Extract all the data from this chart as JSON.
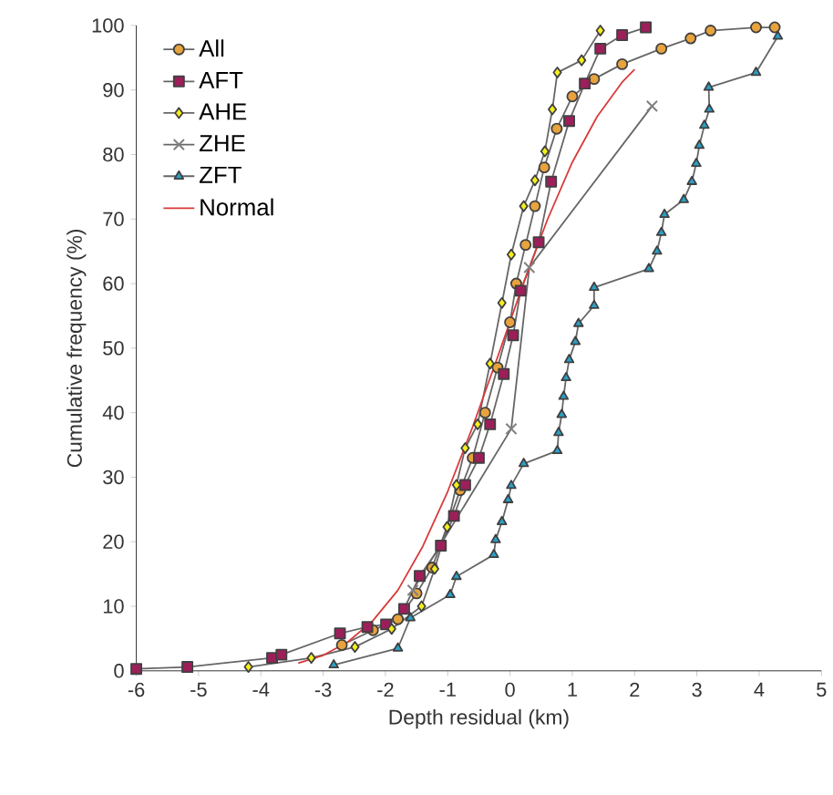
{
  "chart_data": {
    "type": "line",
    "xlabel": "Depth residual (km)",
    "ylabel": "Cumulative frequency (%)",
    "xlim": [
      -6,
      5
    ],
    "xticks": [
      -6,
      -5,
      -4,
      -3,
      -2,
      -1,
      0,
      1,
      2,
      3,
      4,
      5
    ],
    "ylim": [
      0,
      100
    ],
    "yticks": [
      0,
      10,
      20,
      30,
      40,
      50,
      60,
      70,
      80,
      90,
      100
    ],
    "grid": false,
    "legend": "top left",
    "series": [
      {
        "name": "All",
        "color": "#e8a33d",
        "marker": "circle",
        "x": [
          -2.7,
          -2.2,
          -1.8,
          -1.5,
          -1.25,
          -0.8,
          -0.6,
          -0.4,
          -0.2,
          0.0,
          0.1,
          0.25,
          0.4,
          0.55,
          0.75,
          1.0,
          1.35,
          1.8,
          2.43,
          2.9,
          3.22,
          3.95,
          4.25
        ],
        "values": [
          4,
          6.3,
          8,
          12,
          16,
          28,
          33,
          40,
          47,
          54,
          60,
          66,
          72,
          78,
          84,
          89,
          91.7,
          94,
          96.4,
          98,
          99.2,
          99.7,
          99.7
        ]
      },
      {
        "name": "AFT",
        "color": "#9c1f5a",
        "marker": "square",
        "x": [
          -6,
          -5.18,
          -3.82,
          -3.67,
          -2.73,
          -2.29,
          -1.99,
          -1.7,
          -1.45,
          -1.11,
          -0.9,
          -0.72,
          -0.5,
          -0.32,
          -0.1,
          0.05,
          0.17,
          0.46,
          0.66,
          0.95,
          1.2,
          1.45,
          1.8,
          2.18
        ],
        "values": [
          0.3,
          0.6,
          2,
          2.5,
          5.8,
          6.8,
          7.2,
          9.6,
          14.7,
          19.4,
          24,
          28.8,
          33,
          38.2,
          46,
          52,
          58.9,
          66.4,
          75.8,
          85.2,
          91,
          96.4,
          98.5,
          99.7
        ]
      },
      {
        "name": "AHE",
        "color": "#f5ee1c",
        "marker": "diamond",
        "x": [
          -4.2,
          -3.19,
          -2.49,
          -1.9,
          -1.42,
          -1.21,
          -1.01,
          -0.86,
          -0.72,
          -0.52,
          -0.32,
          -0.13,
          0.02,
          0.22,
          0.4,
          0.56,
          0.68,
          0.76,
          1.15,
          1.45
        ],
        "values": [
          0.6,
          2,
          3.7,
          6.5,
          10,
          15.8,
          22.3,
          28.8,
          34.5,
          38.2,
          47.6,
          57,
          64.5,
          72,
          76,
          80.5,
          87,
          92.7,
          94.6,
          99.2
        ]
      },
      {
        "name": "ZHE",
        "color": "#808080",
        "marker": "cross",
        "x": [
          -1.56,
          0.02,
          0.31,
          2.28
        ],
        "values": [
          12.5,
          37.5,
          62.5,
          87.5
        ]
      },
      {
        "name": "ZFT",
        "color": "#2aa0c8",
        "marker": "triangle",
        "x": [
          -2.83,
          -1.8,
          -1.6,
          -0.96,
          -0.86,
          -0.26,
          -0.23,
          -0.13,
          -0.03,
          0.02,
          0.22,
          0.76,
          0.78,
          0.83,
          0.86,
          0.9,
          0.95,
          1.05,
          1.1,
          1.35,
          1.35,
          2.23,
          2.36,
          2.43,
          2.48,
          2.79,
          2.92,
          2.99,
          3.04,
          3.12,
          3.2,
          3.19,
          3.95,
          4.3
        ],
        "values": [
          0.9,
          3.5,
          8.2,
          11.8,
          14.6,
          18,
          20.3,
          23.1,
          26.5,
          28.7,
          32.1,
          34.1,
          36.9,
          39.7,
          42.5,
          45.4,
          48.2,
          51,
          53.8,
          56.6,
          59.4,
          62.3,
          65,
          67.9,
          70.7,
          73,
          75.8,
          78.6,
          81.4,
          84.5,
          87,
          90.4,
          92.7,
          98.3
        ]
      },
      {
        "name": "Normal",
        "color": "#d93a3a",
        "marker": "none",
        "x": [
          -3.4,
          -3.0,
          -2.6,
          -2.2,
          -1.8,
          -1.4,
          -1.0,
          -0.6,
          -0.2,
          0.2,
          0.6,
          1.0,
          1.4,
          1.8,
          2.0
        ],
        "values": [
          1.2,
          2.4,
          4.5,
          7.8,
          12.5,
          19.3,
          27.8,
          37.8,
          48.6,
          59.6,
          69.9,
          78.8,
          85.9,
          91.2,
          93.2
        ]
      }
    ]
  }
}
